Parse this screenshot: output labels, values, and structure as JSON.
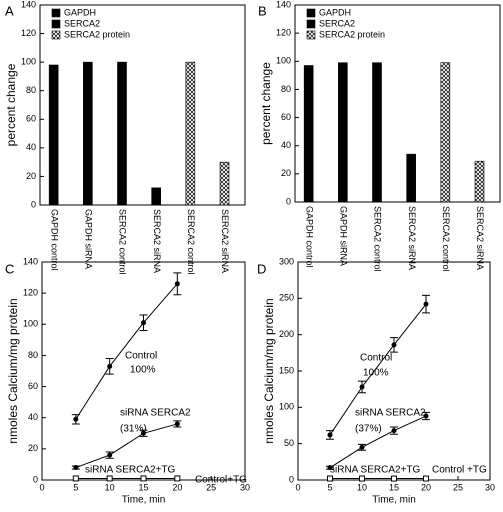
{
  "chart_data": [
    {
      "type": "bar",
      "panel_label": "A",
      "ylabel": "percent change",
      "categories": [
        "GAPDH control",
        "GAPDH siRNA",
        "SERCA2 control",
        "SERCA2 siRNA",
        "SERCA2 control",
        "SERCA2 siRNA"
      ],
      "series": [
        {
          "name": "GAPDH",
          "color": "#000000",
          "values": [
            98,
            100,
            null,
            null,
            null,
            null
          ]
        },
        {
          "name": "SERCA2",
          "color": "#000000",
          "values": [
            null,
            null,
            100,
            12,
            null,
            null
          ]
        },
        {
          "name": "SERCA2 protein",
          "color": "#000000",
          "hatch": true,
          "values": [
            null,
            null,
            null,
            null,
            100,
            30
          ]
        }
      ],
      "ylim": [
        0,
        140
      ],
      "yticks": [
        0,
        20,
        40,
        60,
        80,
        100,
        120,
        140
      ],
      "legend": "upper left"
    },
    {
      "type": "bar",
      "panel_label": "B",
      "ylabel": "percent change",
      "categories": [
        "GAPDH control",
        "GAPDH siRNA",
        "SERCA2 control",
        "SERCA2 siRNA",
        "SERCA2 control",
        "SERCA2 siRNA"
      ],
      "series": [
        {
          "name": "GAPDH",
          "color": "#000000",
          "values": [
            97,
            99,
            null,
            null,
            null,
            null
          ]
        },
        {
          "name": "SERCA2",
          "color": "#000000",
          "values": [
            null,
            null,
            99,
            34,
            null,
            null
          ]
        },
        {
          "name": "SERCA2 protein",
          "color": "#000000",
          "hatch": true,
          "values": [
            null,
            null,
            null,
            null,
            99,
            29
          ]
        }
      ],
      "ylim": [
        0,
        140
      ],
      "yticks": [
        0,
        20,
        40,
        60,
        80,
        100,
        120,
        140
      ],
      "legend": "upper left"
    },
    {
      "type": "line",
      "panel_label": "C",
      "xlabel": "Time, min",
      "ylabel": "nmoles Calcium/mg protein",
      "x": [
        5,
        10,
        15,
        20
      ],
      "series": [
        {
          "color": "#000000",
          "marker": "circle",
          "values": [
            39,
            73,
            101,
            126
          ],
          "errors": [
            3,
            5,
            5,
            7
          ]
        },
        {
          "color": "#000000",
          "marker": "circle",
          "values": [
            8,
            16,
            30,
            36
          ],
          "errors": [
            1,
            2,
            2,
            2
          ]
        },
        {
          "color": "#000000",
          "marker": "square",
          "values": [
            1,
            1,
            1,
            1
          ]
        }
      ],
      "annotations": [
        "Control",
        "100%",
        "siRNA SERCA2",
        "(31%)",
        "siRNA SERCA2+TG",
        "Control+TG"
      ],
      "xlim": [
        0,
        30
      ],
      "xticks": [
        0,
        5,
        10,
        15,
        20,
        25,
        30
      ],
      "ylim": [
        0,
        140
      ],
      "yticks": [
        0,
        20,
        40,
        60,
        80,
        100,
        120,
        140
      ]
    },
    {
      "type": "line",
      "panel_label": "D",
      "xlabel": "Time, min",
      "ylabel": "nmoles Calcium/mg protein",
      "x": [
        5,
        10,
        15,
        20
      ],
      "series": [
        {
          "color": "#000000",
          "marker": "circle",
          "values": [
            62,
            128,
            186,
            242
          ],
          "errors": [
            6,
            8,
            10,
            12
          ]
        },
        {
          "color": "#000000",
          "marker": "circle",
          "values": [
            17,
            45,
            68,
            88
          ],
          "errors": [
            2,
            4,
            5,
            5
          ]
        },
        {
          "color": "#000000",
          "marker": "square",
          "values": [
            2,
            2,
            2,
            2
          ]
        }
      ],
      "annotations": [
        "Control",
        "100%",
        "siRNA SERCA2",
        "(37%)",
        "siRNA SERCA2+TG",
        "Control +TG"
      ],
      "xlim": [
        0,
        30
      ],
      "xticks": [
        0,
        5,
        10,
        15,
        20,
        25,
        30
      ],
      "ylim": [
        0,
        300
      ],
      "yticks": [
        0,
        50,
        100,
        150,
        200,
        250,
        300
      ]
    }
  ]
}
